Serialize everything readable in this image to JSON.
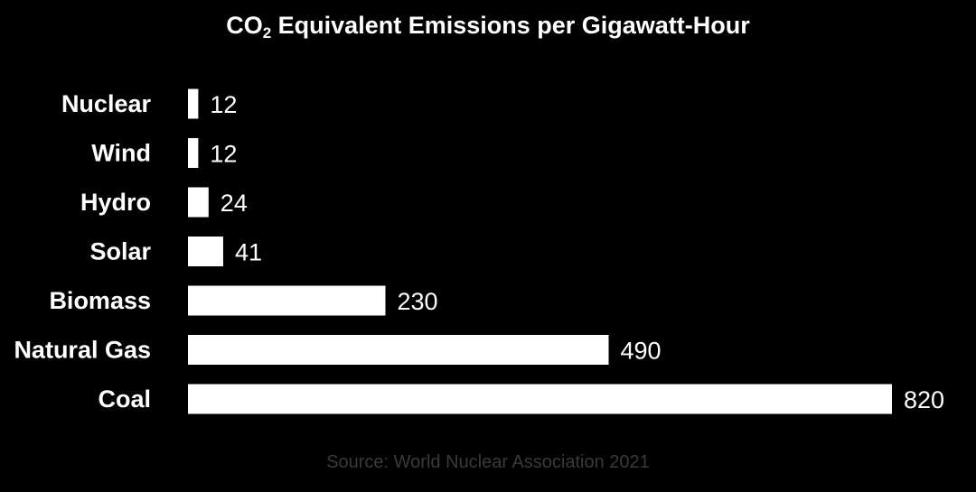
{
  "chart_data": {
    "type": "bar",
    "orientation": "horizontal",
    "title_main": "CO",
    "title_sub": "2",
    "title_rest": " Equivalent Emissions per Gigawatt-Hour",
    "categories": [
      "Nuclear",
      "Wind",
      "Hydro",
      "Solar",
      "Biomass",
      "Natural Gas",
      "Coal"
    ],
    "values": [
      12,
      12,
      24,
      41,
      230,
      490,
      820
    ],
    "value_labels": [
      "12",
      "12",
      "24",
      "41",
      "230",
      "490",
      "820"
    ],
    "xlim": [
      0,
      820
    ],
    "grid": false,
    "legend": "none",
    "source": "Source: World Nuclear Association 2021"
  },
  "colors": {
    "background": "#000000",
    "bar": "#ffffff",
    "text": "#ffffff",
    "source_text": "#3a3a3a"
  }
}
